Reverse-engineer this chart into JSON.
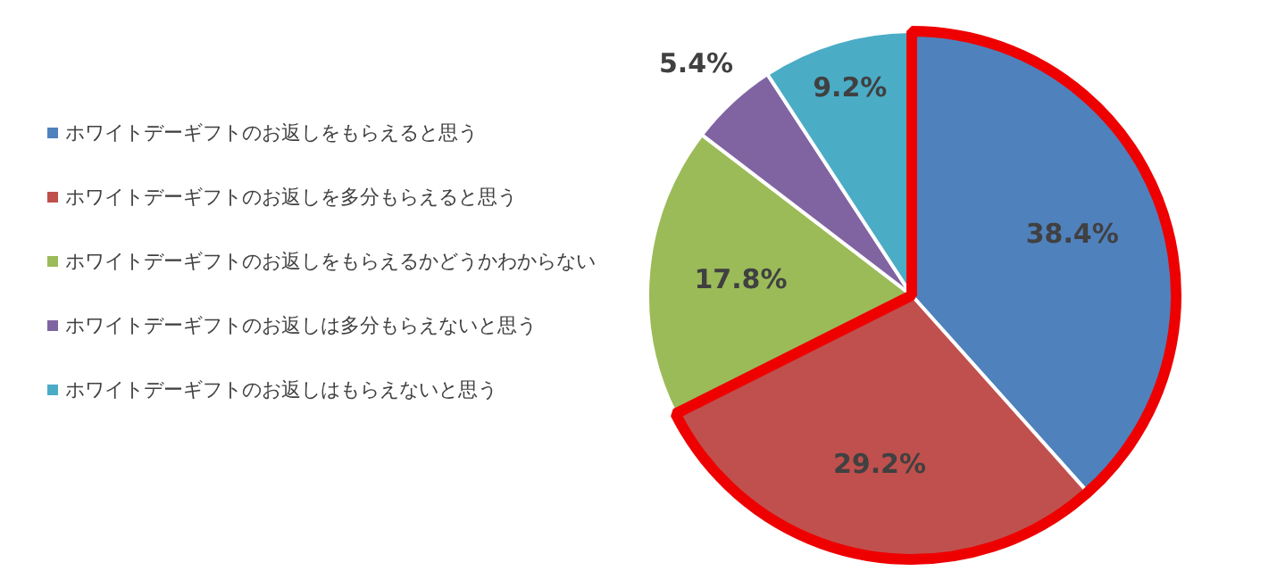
{
  "chart_data": {
    "type": "pie",
    "categories": [
      "ホワイトデーギフトのお返しをもらえると思う",
      "ホワイトデーギフトのお返しを多分もらえると思う",
      "ホワイトデーギフトのお返しをもらえるかどうかわからない",
      "ホワイトデーギフトのお返しは多分もらえないと思う",
      "ホワイトデーギフトのお返しはもらえないと思う"
    ],
    "values": [
      38.4,
      29.2,
      17.8,
      5.4,
      9.2
    ],
    "value_labels": [
      "38.4%",
      "29.2%",
      "17.8%",
      "5.4%",
      "9.2%"
    ],
    "colors": [
      "#4f81bd",
      "#c0504d",
      "#9bbb59",
      "#8064a2",
      "#4bacc6"
    ],
    "legend": "left"
  }
}
